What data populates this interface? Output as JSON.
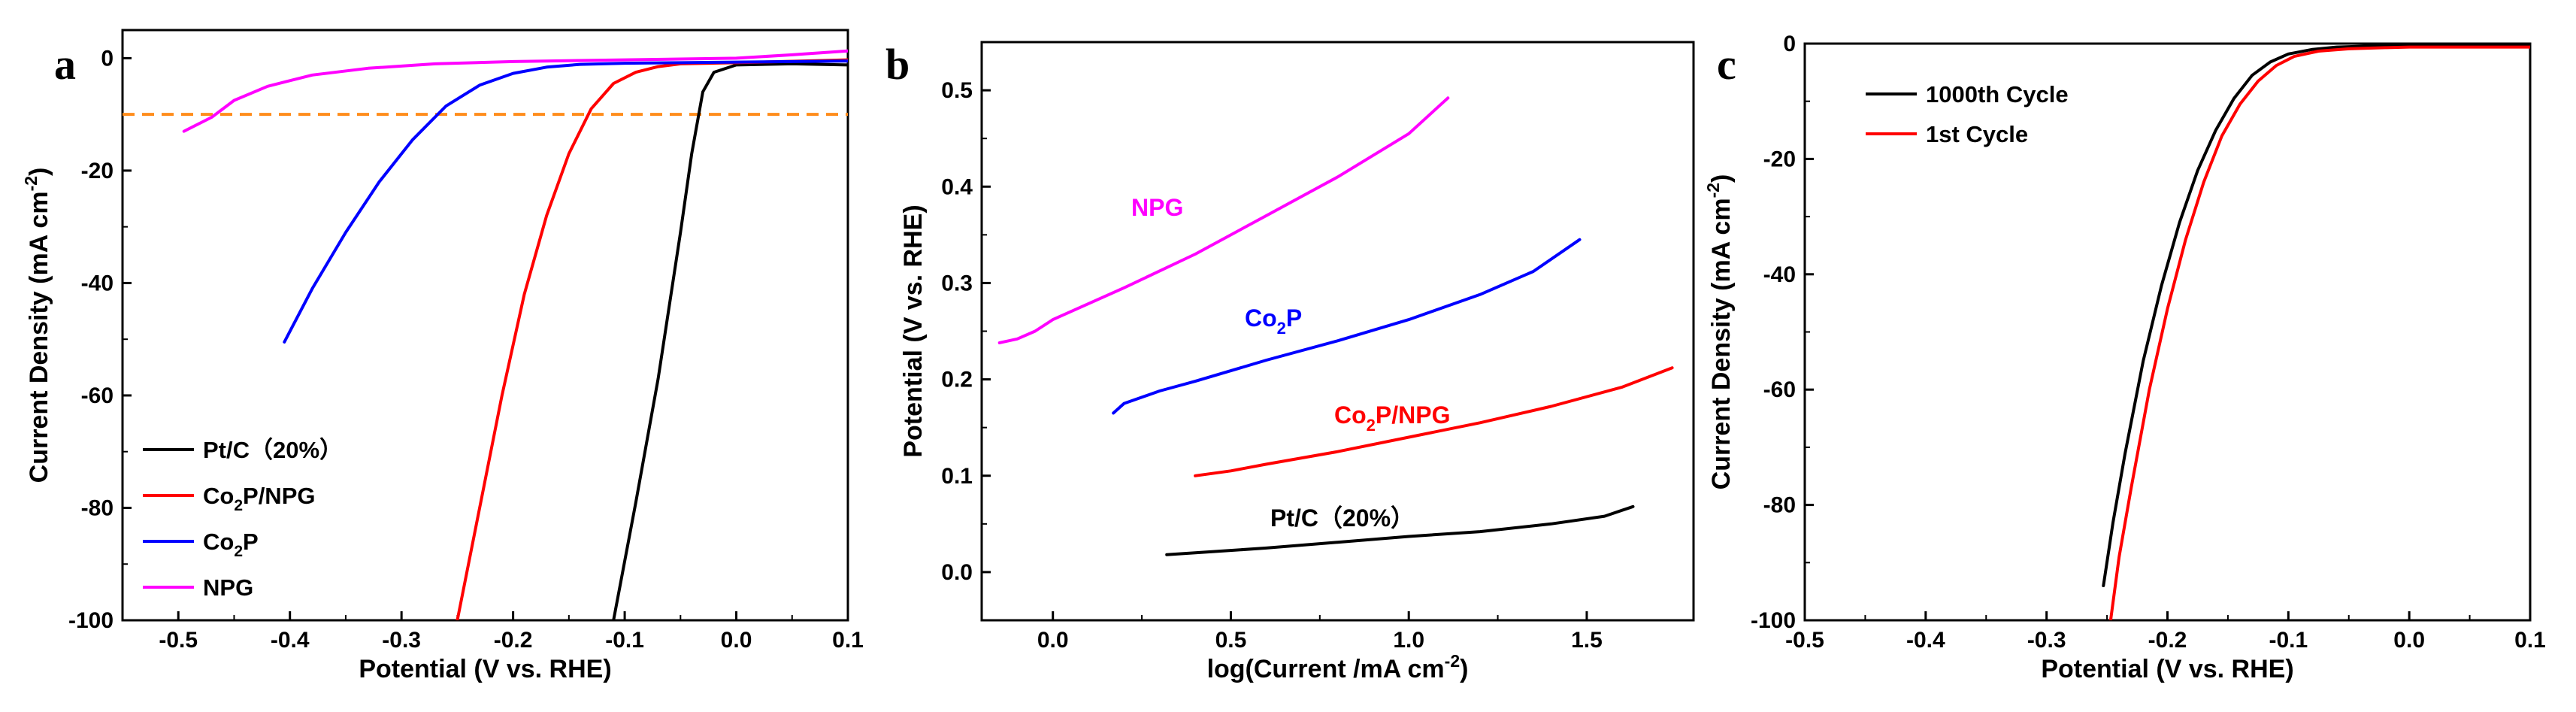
{
  "chart_data": [
    {
      "panel": "a",
      "type": "line",
      "xlabel": "Potential (V vs. RHE)",
      "ylabel": "Current Density (mA cm-2)",
      "ylabel_parts": [
        "Current Density (mA cm",
        "-2",
        ")"
      ],
      "xlim": [
        -0.55,
        0.1
      ],
      "ylim": [
        -100,
        5
      ],
      "xticks": [
        -0.5,
        -0.4,
        -0.3,
        -0.2,
        -0.1,
        0.0,
        0.1
      ],
      "xtick_labels": [
        "-0.5",
        "-0.4",
        "-0.3",
        "-0.2",
        "-0.1",
        "0.0",
        "0.1"
      ],
      "yticks": [
        -100,
        -80,
        -60,
        -40,
        -20,
        0
      ],
      "ytick_labels": [
        "-100",
        "-80",
        "-60",
        "-40",
        "-20",
        "0"
      ],
      "reference_line": {
        "y": -10,
        "color": "#ff8c1a",
        "style": "dashed"
      },
      "legend": [
        {
          "label": "Pt/C（20%）",
          "color": "#000000"
        },
        {
          "label": "Co2P/NPG",
          "color": "#ff0000",
          "parts": [
            "Co",
            "2",
            "P/NPG"
          ]
        },
        {
          "label": "Co2P",
          "color": "#0000ff",
          "parts": [
            "Co",
            "2",
            "P"
          ]
        },
        {
          "label": "NPG",
          "color": "#ff00ff"
        }
      ],
      "series": [
        {
          "name": "Pt/C（20%）",
          "color": "#000000",
          "x": [
            -0.11,
            -0.09,
            -0.07,
            -0.05,
            -0.04,
            -0.03,
            -0.02,
            0.0,
            0.05,
            0.1
          ],
          "y": [
            -100,
            -79,
            -57,
            -31,
            -17,
            -6,
            -2.5,
            -1.2,
            -1.0,
            -1.2
          ]
        },
        {
          "name": "Co2P/NPG",
          "color": "#ff0000",
          "x": [
            -0.25,
            -0.23,
            -0.21,
            -0.19,
            -0.17,
            -0.15,
            -0.13,
            -0.11,
            -0.09,
            -0.07,
            -0.05,
            0.0,
            0.1
          ],
          "y": [
            -100,
            -80,
            -60,
            -42,
            -28,
            -17,
            -9,
            -4.5,
            -2.5,
            -1.5,
            -1.0,
            -0.8,
            -0.3
          ]
        },
        {
          "name": "Co2P",
          "color": "#0000ff",
          "x": [
            -0.405,
            -0.38,
            -0.35,
            -0.32,
            -0.29,
            -0.26,
            -0.23,
            -0.2,
            -0.17,
            -0.14,
            -0.1,
            -0.05,
            0.0,
            0.05,
            0.1
          ],
          "y": [
            -50.5,
            -41,
            -31,
            -22,
            -14.5,
            -8.5,
            -4.8,
            -2.7,
            -1.6,
            -1.1,
            -0.9,
            -0.8,
            -0.7,
            -0.6,
            -0.5
          ]
        },
        {
          "name": "NPG",
          "color": "#ff00ff",
          "x": [
            -0.495,
            -0.47,
            -0.45,
            -0.42,
            -0.38,
            -0.33,
            -0.27,
            -0.2,
            -0.1,
            0.0,
            0.05,
            0.1
          ],
          "y": [
            -13,
            -10.5,
            -7.5,
            -5,
            -3,
            -1.8,
            -1.0,
            -0.6,
            -0.3,
            0.0,
            0.6,
            1.3
          ]
        }
      ]
    },
    {
      "panel": "b",
      "type": "line",
      "xlabel": "log(Current /mA cm-2)",
      "xlabel_parts": [
        "log(Current /mA cm",
        "-2",
        ")"
      ],
      "ylabel": "Potential (V vs. RHE)",
      "xlim": [
        -0.2,
        1.8
      ],
      "ylim": [
        -0.05,
        0.55
      ],
      "xticks": [
        0.0,
        0.5,
        1.0,
        1.5
      ],
      "xtick_labels": [
        "0.0",
        "0.5",
        "1.0",
        "1.5"
      ],
      "yticks": [
        0.0,
        0.1,
        0.2,
        0.3,
        0.4,
        0.5
      ],
      "ytick_labels": [
        "0.0",
        "0.1",
        "0.2",
        "0.3",
        "0.4",
        "0.5"
      ],
      "annotations": [
        {
          "label": "NPG",
          "color": "#ff00ff"
        },
        {
          "label": "Co2P",
          "color": "#0000ff",
          "parts": [
            "Co",
            "2",
            "P"
          ]
        },
        {
          "label": "Co2P/NPG",
          "color": "#ff0000",
          "parts": [
            "Co",
            "2",
            "P/NPG"
          ]
        },
        {
          "label": "Pt/C（20%）",
          "color": "#000000"
        }
      ],
      "series": [
        {
          "name": "NPG",
          "color": "#ff00ff",
          "x": [
            -0.15,
            -0.1,
            -0.05,
            0.0,
            0.2,
            0.4,
            0.6,
            0.8,
            1.0,
            1.11
          ],
          "y": [
            0.238,
            0.242,
            0.25,
            0.262,
            0.295,
            0.33,
            0.37,
            0.41,
            0.455,
            0.492
          ]
        },
        {
          "name": "Co2P",
          "color": "#0000ff",
          "x": [
            0.17,
            0.2,
            0.3,
            0.4,
            0.6,
            0.8,
            1.0,
            1.2,
            1.35,
            1.48
          ],
          "y": [
            0.165,
            0.175,
            0.188,
            0.198,
            0.22,
            0.24,
            0.262,
            0.288,
            0.312,
            0.345
          ]
        },
        {
          "name": "Co2P/NPG",
          "color": "#ff0000",
          "x": [
            0.4,
            0.5,
            0.6,
            0.8,
            1.0,
            1.2,
            1.4,
            1.6,
            1.74
          ],
          "y": [
            0.1,
            0.105,
            0.112,
            0.125,
            0.14,
            0.155,
            0.172,
            0.192,
            0.212
          ]
        },
        {
          "name": "Pt/C（20%）",
          "color": "#000000",
          "x": [
            0.32,
            0.4,
            0.6,
            0.8,
            1.0,
            1.2,
            1.4,
            1.55,
            1.63
          ],
          "y": [
            0.018,
            0.02,
            0.025,
            0.031,
            0.037,
            0.042,
            0.05,
            0.058,
            0.068
          ]
        }
      ]
    },
    {
      "panel": "c",
      "type": "line",
      "xlabel": "Potential (V vs. RHE)",
      "ylabel": "Current Density (mA cm-2)",
      "ylabel_parts": [
        "Current Density (mA cm",
        "-2",
        ")"
      ],
      "xlim": [
        -0.5,
        0.1
      ],
      "ylim": [
        -100,
        0
      ],
      "xticks": [
        -0.5,
        -0.4,
        -0.3,
        -0.2,
        -0.1,
        0.0,
        0.1
      ],
      "xtick_labels": [
        "-0.5",
        "-0.4",
        "-0.3",
        "-0.2",
        "-0.1",
        "0.0",
        "0.1"
      ],
      "yticks": [
        -100,
        -80,
        -60,
        -40,
        -20,
        0
      ],
      "ytick_labels": [
        "-100",
        "-80",
        "-60",
        "-40",
        "-20",
        "0"
      ],
      "legend": [
        {
          "label": "1000th Cycle",
          "color": "#000000"
        },
        {
          "label": "1st Cycle",
          "color": "#ff0000"
        }
      ],
      "series": [
        {
          "name": "1000th Cycle",
          "color": "#000000",
          "x": [
            -0.253,
            -0.245,
            -0.235,
            -0.22,
            -0.205,
            -0.19,
            -0.175,
            -0.16,
            -0.145,
            -0.13,
            -0.115,
            -0.1,
            -0.08,
            -0.06,
            -0.03,
            0.0,
            0.05,
            0.1
          ],
          "y": [
            -94,
            -83,
            -71,
            -55,
            -42,
            -31,
            -22,
            -15,
            -9.5,
            -5.5,
            -3.2,
            -1.8,
            -1.0,
            -0.6,
            -0.4,
            -0.3,
            -0.3,
            -0.3
          ]
        },
        {
          "name": "1st Cycle",
          "color": "#ff0000",
          "x": [
            -0.247,
            -0.24,
            -0.23,
            -0.215,
            -0.2,
            -0.185,
            -0.17,
            -0.155,
            -0.14,
            -0.125,
            -0.11,
            -0.095,
            -0.075,
            -0.05,
            -0.02,
            0.0,
            0.05,
            0.1
          ],
          "y": [
            -100,
            -89,
            -77,
            -60,
            -46,
            -34,
            -24,
            -16,
            -10.5,
            -6.5,
            -3.8,
            -2.2,
            -1.3,
            -0.9,
            -0.7,
            -0.6,
            -0.6,
            -0.6
          ]
        }
      ]
    }
  ],
  "panel_letters": [
    "a",
    "b",
    "c"
  ]
}
